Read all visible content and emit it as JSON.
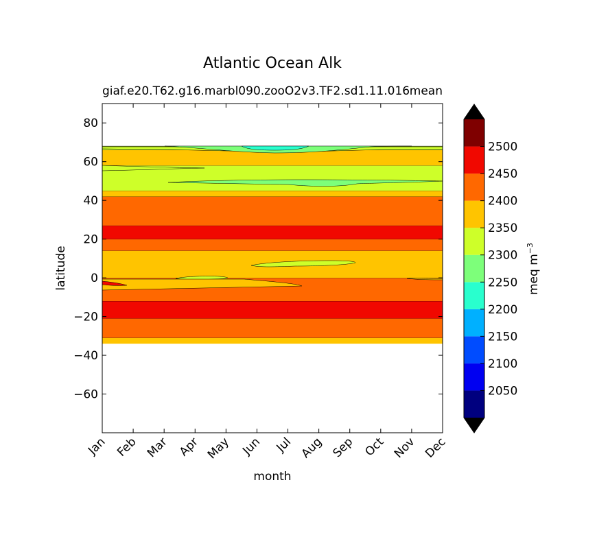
{
  "chart_data": {
    "type": "contour",
    "title": "Atlantic Ocean Alk",
    "subtitle_left": "giaf.e20.T62.g16.marbl090.zooO2v3.TF2.sd1.11.016",
    "subtitle_right": "mean",
    "xlabel": "month",
    "ylabel": "latitude",
    "x_ticks": [
      "Jan",
      "Feb",
      "Mar",
      "Apr",
      "May",
      "Jun",
      "Jul",
      "Aug",
      "Sep",
      "Oct",
      "Nov",
      "Dec"
    ],
    "ylim": [
      -80,
      90
    ],
    "y_ticks": [
      80,
      60,
      40,
      20,
      0,
      -20,
      -40,
      -60
    ],
    "y_tick_labels": [
      "80",
      "60",
      "40",
      "20",
      "0",
      "−20",
      "−40",
      "−60"
    ],
    "data_lat_range": [
      -34,
      68
    ],
    "colorbar": {
      "label": "meq m",
      "label_exponent": "−3",
      "levels": [
        2000,
        2050,
        2100,
        2150,
        2200,
        2250,
        2300,
        2350,
        2400,
        2450,
        2500,
        2550
      ],
      "tick_values": [
        2050,
        2100,
        2150,
        2200,
        2250,
        2300,
        2350,
        2400,
        2450,
        2500
      ],
      "tick_labels": [
        "2050",
        "2100",
        "2150",
        "2200",
        "2250",
        "2300",
        "2350",
        "2400",
        "2450",
        "2500"
      ],
      "colors": [
        "#00007f",
        "#0000f1",
        "#004cff",
        "#00b0ff",
        "#29ffce",
        "#7dff7a",
        "#ceff29",
        "#ffc400",
        "#ff6800",
        "#f10800",
        "#7f0000"
      ],
      "extend": "both",
      "extend_color": "#000000"
    },
    "bands": [
      {
        "lat_min": -34,
        "lat_max": -31,
        "range": "2350-2400",
        "color": "#ffc400"
      },
      {
        "lat_min": -31,
        "lat_max": -21,
        "range": "2400-2450",
        "color": "#ff6800"
      },
      {
        "lat_min": -21,
        "lat_max": -12,
        "range": "2450-2500",
        "color": "#f10800"
      },
      {
        "lat_min": -12,
        "lat_max": 0,
        "range": "2400-2450",
        "color": "#ff6800"
      },
      {
        "lat_min": 0,
        "lat_max": 14,
        "range": "2350-2400",
        "color": "#ffc400"
      },
      {
        "lat_min": 14,
        "lat_max": 20,
        "range": "2400-2450",
        "color": "#ff6800"
      },
      {
        "lat_min": 20,
        "lat_max": 27,
        "range": "2450-2500",
        "color": "#f10800"
      },
      {
        "lat_min": 27,
        "lat_max": 42,
        "range": "2400-2450",
        "color": "#ff6800"
      },
      {
        "lat_min": 42,
        "lat_max": 45,
        "range": "2350-2400",
        "color": "#ffc400"
      },
      {
        "lat_min": 45,
        "lat_max": 58,
        "range": "2300-2350",
        "color": "#ceff29"
      },
      {
        "lat_min": 58,
        "lat_max": 66,
        "range": "2350-2400",
        "color": "#ffc400"
      },
      {
        "lat_min": 66,
        "lat_max": 68,
        "range": "2300-2350",
        "color": "#ceff29"
      }
    ],
    "features": [
      {
        "range": "2250-2300",
        "color": "#7dff7a",
        "lat": 48,
        "month_start": 5.5,
        "month_end": 8.5,
        "description": "weak alkalinity minimum near 48N in summer"
      },
      {
        "range": "2250-2300",
        "color": "#7dff7a",
        "lat": 67,
        "month_start": 2.5,
        "month_end": 11,
        "description": "low alkalinity at northern edge"
      },
      {
        "range": "2200-2250",
        "color": "#29ffce",
        "lat": 67.5,
        "month_start": 4.5,
        "month_end": 6.5,
        "description": "lowest values at northern edge in June-July"
      },
      {
        "range": "2300-2350",
        "color": "#ceff29",
        "lat": 7,
        "month_start": 4.8,
        "month_end": 8.2,
        "description": "freshened equatorial pocket"
      }
    ]
  }
}
